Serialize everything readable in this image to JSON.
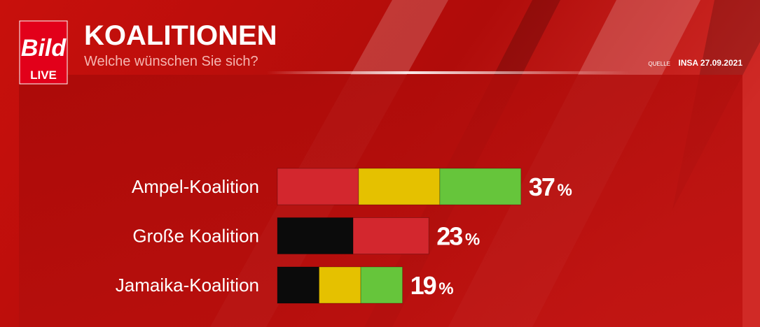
{
  "brand": {
    "logo": "Bild",
    "live": "LIVE"
  },
  "chart_data": {
    "type": "segmented-bar",
    "title": "KOALITIONEN",
    "subtitle": "Welche wünschen Sie sich?",
    "source_label": "QUELLE",
    "source": "INSA 27.09.2021",
    "categories": [
      "Ampel-Koalition",
      "Große Koalition",
      "Jamaika-Koalition"
    ],
    "values": [
      37,
      23,
      19
    ],
    "value_labels": [
      "37 %",
      "23 %",
      "19 %"
    ],
    "segment_colors": [
      [
        "#d3272e",
        "#e5c100",
        "#66c53b"
      ],
      [
        "#0b0b0b",
        "#d3272e"
      ],
      [
        "#0b0b0b",
        "#e5c100",
        "#66c53b"
      ]
    ]
  }
}
